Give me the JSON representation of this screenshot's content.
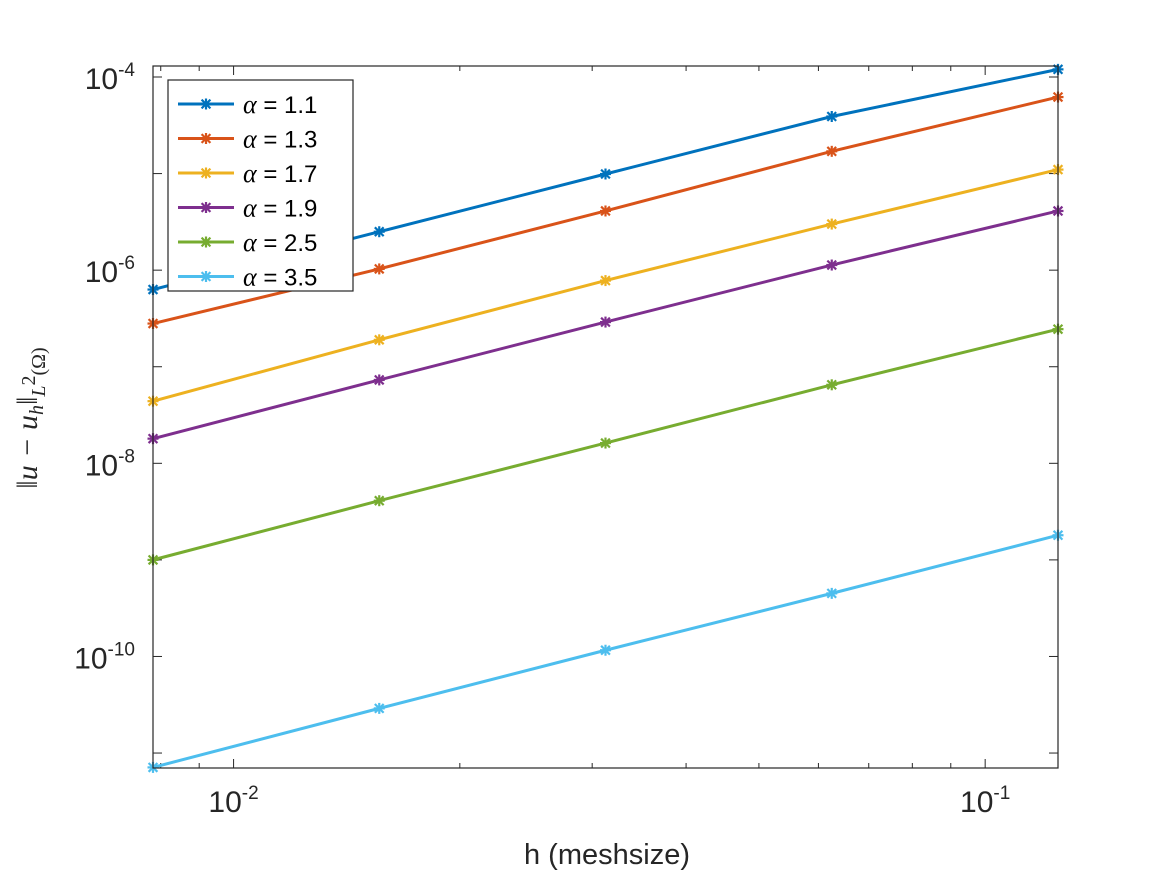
{
  "chart_data": {
    "type": "line",
    "xscale": "log",
    "yscale": "log",
    "xlabel": "h (meshsize)",
    "ylabel": "||u − u_h||_{L^2(Ω)}",
    "ylabel_parts": {
      "main": "‖u − u",
      "sub_h": "h",
      "norm_close": "‖",
      "space": "L",
      "sup": "2",
      "paren": "(Ω)"
    },
    "xlim": [
      0.0078125,
      0.125
    ],
    "ylim": [
      7e-12,
      0.00013
    ],
    "xticks": [
      {
        "value": 0.01,
        "base": "10",
        "exp": "-2"
      },
      {
        "value": 0.1,
        "base": "10",
        "exp": "-1"
      }
    ],
    "yticks": [
      {
        "value": 1e-10,
        "base": "10",
        "exp": "-10"
      },
      {
        "value": 1e-08,
        "base": "10",
        "exp": "-8"
      },
      {
        "value": 1e-06,
        "base": "10",
        "exp": "-6"
      },
      {
        "value": 0.0001,
        "base": "10",
        "exp": "-4"
      }
    ],
    "x": [
      0.0078125,
      0.015625,
      0.03125,
      0.0625,
      0.125
    ],
    "legend_position": "top-left",
    "series": [
      {
        "name": "α = 1.1",
        "symbol": "α",
        "label": " = 1.1",
        "color": "#0072BD",
        "values": [
          6.3e-07,
          2.5e-06,
          9.9e-06,
          3.9e-05,
          0.00012
        ]
      },
      {
        "name": "α = 1.3",
        "symbol": "α",
        "label": " = 1.3",
        "color": "#D95319",
        "values": [
          2.8e-07,
          1.03e-06,
          4.1e-06,
          1.7e-05,
          6.2e-05
        ]
      },
      {
        "name": "α = 1.7",
        "symbol": "α",
        "label": " = 1.7",
        "color": "#EDB120",
        "values": [
          4.4e-08,
          1.9e-07,
          7.8e-07,
          3e-06,
          1.1e-05
        ]
      },
      {
        "name": "α = 1.9",
        "symbol": "α",
        "label": " = 1.9",
        "color": "#7E2F8E",
        "values": [
          1.8e-08,
          7.3e-08,
          2.9e-07,
          1.13e-06,
          4.1e-06
        ]
      },
      {
        "name": "α = 2.5",
        "symbol": "α",
        "label": " = 2.5",
        "color": "#77AC30",
        "values": [
          1e-09,
          4.1e-09,
          1.62e-08,
          6.5e-08,
          2.45e-07
        ]
      },
      {
        "name": "α = 3.5",
        "symbol": "α",
        "label": " = 3.5",
        "color": "#4DBEEE",
        "values": [
          7.1e-12,
          2.9e-11,
          1.16e-10,
          4.5e-10,
          1.8e-09
        ]
      }
    ]
  }
}
